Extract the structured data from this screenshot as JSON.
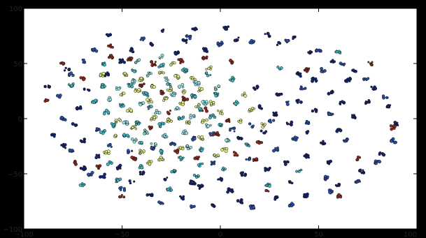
{
  "chart_data": {
    "type": "scatter",
    "title": "",
    "xlabel": "",
    "ylabel": "",
    "xlim": [
      -100,
      100
    ],
    "ylim": [
      -100,
      100
    ],
    "xticks": [
      -100,
      -50,
      0,
      50,
      100
    ],
    "yticks": [
      -100,
      -50,
      0,
      50,
      100
    ],
    "xtick_labels": [
      "−100",
      "−50",
      "0",
      "50",
      "100"
    ],
    "ytick_labels": [
      "−100",
      "−50",
      "0",
      "50",
      "100"
    ],
    "grid": false,
    "legend": "none",
    "colors": {
      "navy": "#16246e",
      "blue": "#2a4fa8",
      "teal": "#3fb6c2",
      "cyan": "#8fe0e0",
      "yellow": "#d9e87a",
      "red": "#8e2a1e",
      "plot_bg": "#ffffff",
      "frame": "#000000"
    },
    "series": [
      {
        "color_key": "navy",
        "points": [
          [
            -30,
            80
          ],
          [
            -13,
            82
          ],
          [
            3,
            82
          ],
          [
            -57,
            76
          ],
          [
            -18,
            70
          ],
          [
            24,
            76
          ],
          [
            37,
            73
          ],
          [
            -78,
            45
          ],
          [
            -88,
            30
          ],
          [
            -85,
            -15
          ],
          [
            -70,
            -45
          ],
          [
            -60,
            -52
          ],
          [
            -45,
            -58
          ],
          [
            -36,
            -70
          ],
          [
            -20,
            -72
          ],
          [
            -4,
            -78
          ],
          [
            10,
            -75
          ],
          [
            28,
            -72
          ],
          [
            44,
            -70
          ],
          [
            60,
            -60
          ],
          [
            72,
            -48
          ],
          [
            82,
            -32
          ],
          [
            90,
            -5
          ],
          [
            86,
            12
          ],
          [
            78,
            28
          ],
          [
            68,
            44
          ],
          [
            57,
            52
          ],
          [
            46,
            60
          ],
          [
            30,
            68
          ],
          [
            8,
            72
          ],
          [
            -8,
            62
          ],
          [
            -45,
            62
          ],
          [
            -35,
            68
          ],
          [
            40,
            40
          ],
          [
            48,
            35
          ],
          [
            56,
            24
          ],
          [
            62,
            14
          ],
          [
            68,
            2
          ],
          [
            60,
            -10
          ],
          [
            52,
            -22
          ],
          [
            44,
            -34
          ],
          [
            34,
            -40
          ],
          [
            24,
            -46
          ],
          [
            12,
            -50
          ],
          [
            0,
            -55
          ],
          [
            -14,
            -58
          ],
          [
            -28,
            -55
          ],
          [
            -40,
            -50
          ],
          [
            -52,
            -44
          ],
          [
            -62,
            -34
          ],
          [
            -70,
            -20
          ],
          [
            -74,
            -5
          ],
          [
            -72,
            10
          ],
          [
            -68,
            26
          ],
          [
            -58,
            40
          ],
          [
            20,
            10
          ],
          [
            28,
            4
          ],
          [
            35,
            -4
          ],
          [
            22,
            -12
          ],
          [
            10,
            -18
          ],
          [
            30,
            22
          ],
          [
            40,
            16
          ],
          [
            48,
            8
          ],
          [
            18,
            28
          ],
          [
            45,
            -12
          ],
          [
            55,
            -40
          ],
          [
            -22,
            60
          ],
          [
            -50,
            52
          ],
          [
            65,
            35
          ],
          [
            75,
            15
          ],
          [
            -80,
            -25
          ],
          [
            5,
            -65
          ],
          [
            -10,
            -62
          ],
          [
            36,
            -58
          ]
        ]
      },
      {
        "color_key": "blue",
        "points": [
          [
            -76,
            40
          ],
          [
            -82,
            20
          ],
          [
            -80,
            0
          ],
          [
            -76,
            -30
          ],
          [
            -66,
            -50
          ],
          [
            -50,
            -64
          ],
          [
            -30,
            -76
          ],
          [
            -14,
            -80
          ],
          [
            16,
            -80
          ],
          [
            36,
            -78
          ],
          [
            56,
            -66
          ],
          [
            70,
            -56
          ],
          [
            80,
            -40
          ],
          [
            88,
            -20
          ],
          [
            84,
            20
          ],
          [
            74,
            36
          ],
          [
            62,
            50
          ],
          [
            50,
            62
          ],
          [
            34,
            70
          ],
          [
            16,
            70
          ],
          [
            0,
            68
          ],
          [
            -16,
            74
          ],
          [
            -40,
            72
          ],
          [
            -64,
            62
          ],
          [
            -70,
            52
          ],
          [
            52,
            44
          ],
          [
            42,
            28
          ],
          [
            34,
            14
          ],
          [
            26,
            -2
          ],
          [
            16,
            -6
          ],
          [
            6,
            -10
          ],
          [
            -4,
            -14
          ],
          [
            -14,
            -18
          ],
          [
            -24,
            -22
          ],
          [
            -34,
            -26
          ],
          [
            -46,
            -30
          ],
          [
            -56,
            -24
          ],
          [
            -62,
            -10
          ],
          [
            44,
            -4
          ],
          [
            56,
            4
          ],
          [
            64,
            -20
          ],
          [
            54,
            -54
          ],
          [
            -4,
            -40
          ],
          [
            14,
            -36
          ],
          [
            28,
            -28
          ],
          [
            38,
            -18
          ]
        ]
      },
      {
        "color_key": "teal",
        "points": [
          [
            -60,
            30
          ],
          [
            -64,
            16
          ],
          [
            -58,
            6
          ],
          [
            -54,
            -6
          ],
          [
            -48,
            -16
          ],
          [
            -40,
            -22
          ],
          [
            -30,
            -30
          ],
          [
            -20,
            -36
          ],
          [
            -10,
            -42
          ],
          [
            2,
            -46
          ],
          [
            -56,
            -40
          ],
          [
            -40,
            -44
          ],
          [
            -24,
            -48
          ],
          [
            -60,
            50
          ],
          [
            -44,
            44
          ],
          [
            -30,
            48
          ],
          [
            -18,
            44
          ],
          [
            -6,
            40
          ],
          [
            6,
            36
          ],
          [
            -2,
            22
          ],
          [
            8,
            14
          ],
          [
            -10,
            8
          ],
          [
            -20,
            0
          ],
          [
            -30,
            -6
          ],
          [
            -42,
            -4
          ],
          [
            -50,
            12
          ],
          [
            -38,
            22
          ],
          [
            -26,
            30
          ],
          [
            -14,
            20
          ],
          [
            -4,
            2
          ],
          [
            14,
            -24
          ],
          [
            24,
            -60
          ],
          [
            -70,
            -60
          ],
          [
            -26,
            -64
          ],
          [
            -10,
            -28
          ],
          [
            0,
            -6
          ],
          [
            -36,
            10
          ],
          [
            -46,
            30
          ],
          [
            -60,
            -12
          ],
          [
            -12,
            -52
          ],
          [
            30,
            46
          ],
          [
            40,
            -48
          ],
          [
            -76,
            30
          ],
          [
            60,
            60
          ],
          [
            -52,
            -56
          ]
        ]
      },
      {
        "color_key": "cyan",
        "points": [
          [
            -36,
            40
          ],
          [
            -28,
            36
          ],
          [
            -20,
            30
          ],
          [
            -12,
            32
          ],
          [
            -44,
            34
          ],
          [
            -52,
            28
          ],
          [
            -40,
            14
          ],
          [
            -32,
            6
          ],
          [
            -22,
            10
          ],
          [
            -14,
            2
          ],
          [
            -6,
            -6
          ],
          [
            -18,
            -12
          ],
          [
            -28,
            -16
          ],
          [
            -38,
            -12
          ],
          [
            -48,
            -4
          ],
          [
            -24,
            22
          ],
          [
            -34,
            -24
          ],
          [
            -8,
            14
          ],
          [
            -44,
            -20
          ],
          [
            4,
            -20
          ],
          [
            -16,
            -26
          ],
          [
            -56,
            18
          ],
          [
            -2,
            28
          ],
          [
            -30,
            56
          ],
          [
            -42,
            52
          ]
        ]
      },
      {
        "color_key": "yellow",
        "points": [
          [
            -48,
            40
          ],
          [
            -40,
            36
          ],
          [
            -30,
            42
          ],
          [
            -22,
            38
          ],
          [
            -14,
            36
          ],
          [
            -50,
            22
          ],
          [
            -42,
            26
          ],
          [
            -34,
            30
          ],
          [
            -26,
            26
          ],
          [
            -18,
            24
          ],
          [
            -10,
            26
          ],
          [
            -46,
            8
          ],
          [
            -36,
            16
          ],
          [
            -28,
            18
          ],
          [
            -20,
            14
          ],
          [
            -12,
            12
          ],
          [
            -4,
            14
          ],
          [
            -52,
            -2
          ],
          [
            -44,
            -8
          ],
          [
            -34,
            0
          ],
          [
            -26,
            -2
          ],
          [
            -16,
            -4
          ],
          [
            -8,
            -2
          ],
          [
            0,
            6
          ],
          [
            -40,
            -30
          ],
          [
            -30,
            -36
          ],
          [
            -20,
            -26
          ],
          [
            -10,
            -18
          ],
          [
            10,
            -2
          ],
          [
            2,
            -28
          ],
          [
            -54,
            -16
          ],
          [
            -58,
            -30
          ],
          [
            16,
            8
          ],
          [
            22,
            -6
          ],
          [
            -6,
            46
          ],
          [
            -24,
            50
          ],
          [
            -36,
            -40
          ],
          [
            -2,
            -34
          ],
          [
            12,
            22
          ],
          [
            -60,
            40
          ]
        ]
      },
      {
        "color_key": "red",
        "points": [
          [
            -56,
            56
          ],
          [
            -46,
            54
          ],
          [
            -34,
            50
          ],
          [
            -20,
            52
          ],
          [
            -8,
            56
          ],
          [
            -40,
            30
          ],
          [
            -30,
            24
          ],
          [
            -18,
            18
          ],
          [
            -8,
            8
          ],
          [
            4,
            -2
          ],
          [
            -26,
            6
          ],
          [
            -36,
            -8
          ],
          [
            -22,
            -30
          ],
          [
            -12,
            -36
          ],
          [
            -44,
            -36
          ],
          [
            -2,
            -14
          ],
          [
            8,
            -32
          ],
          [
            18,
            -38
          ],
          [
            -62,
            -44
          ],
          [
            -74,
            -40
          ],
          [
            -88,
            16
          ],
          [
            -80,
            50
          ],
          [
            -56,
            66
          ],
          [
            88,
            -8
          ],
          [
            76,
            50
          ],
          [
            60,
            -70
          ],
          [
            44,
            44
          ],
          [
            24,
            -66
          ],
          [
            -50,
            -70
          ],
          [
            -70,
            36
          ],
          [
            70,
            -36
          ],
          [
            6,
            52
          ],
          [
            20,
            -22
          ]
        ]
      }
    ]
  }
}
